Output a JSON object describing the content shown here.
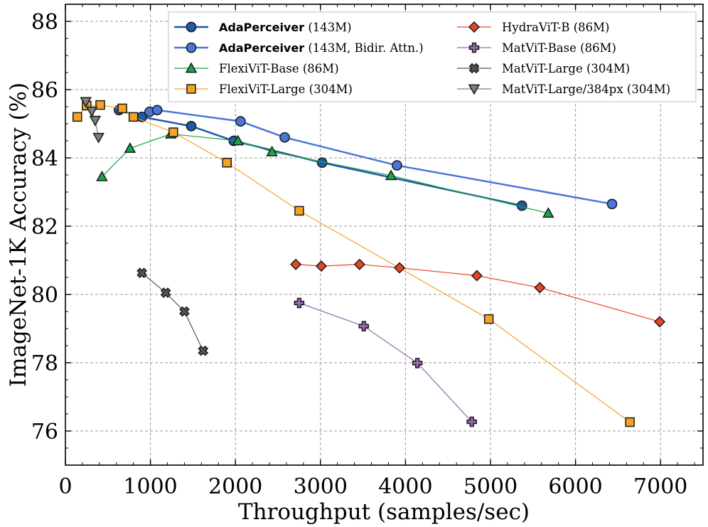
{
  "chart_data": {
    "type": "line",
    "title": "",
    "xlabel": "Throughput (samples/sec)",
    "ylabel": "ImageNet-1K Accuracy (%)",
    "xlim": [
      0,
      7500
    ],
    "ylim": [
      75,
      88.5
    ],
    "xticks": [
      0,
      1000,
      2000,
      3000,
      4000,
      5000,
      6000,
      7000
    ],
    "yticks": [
      76,
      78,
      80,
      82,
      84,
      86,
      88
    ],
    "grid": true,
    "legend_position": "top",
    "series": [
      {
        "name": "AdaPerceiver",
        "name_bold": true,
        "detail": " (143M)",
        "color": "#1f5aa6",
        "marker": "circle",
        "lw": 2.5,
        "x": [
          630,
          900,
          1480,
          1980,
          3020,
          5370
        ],
        "y": [
          85.4,
          85.2,
          84.93,
          84.5,
          83.86,
          82.6
        ]
      },
      {
        "name": "AdaPerceiver",
        "name_bold": true,
        "detail": " (143M, Bidir. Attn.)",
        "color": "#4a76d8",
        "marker": "circle",
        "lw": 2.5,
        "x": [
          990,
          1080,
          2060,
          2580,
          3900,
          6430
        ],
        "y": [
          85.35,
          85.4,
          85.07,
          84.6,
          83.78,
          82.65
        ]
      },
      {
        "name": "FlexiViT-Base (86M)",
        "color": "#1aa648",
        "marker": "triangle-up",
        "lw": 1.2,
        "x": [
          430,
          760,
          1240,
          2030,
          2430,
          3830,
          5680
        ],
        "y": [
          83.45,
          84.28,
          84.7,
          84.5,
          84.18,
          83.48,
          82.38
        ]
      },
      {
        "name": "FlexiViT-Large (304M)",
        "color": "#f4a323",
        "marker": "square",
        "lw": 1.2,
        "x": [
          140,
          250,
          410,
          670,
          800,
          1270,
          1900,
          2750,
          4980,
          6640
        ],
        "y": [
          85.2,
          85.53,
          85.55,
          85.45,
          85.2,
          84.75,
          83.86,
          82.45,
          79.28,
          76.26
        ]
      },
      {
        "name": "HydraViT-B (86M)",
        "color": "#e84622",
        "marker": "diamond",
        "lw": 1.2,
        "x": [
          2710,
          3010,
          3460,
          3930,
          4840,
          5580,
          6990
        ],
        "y": [
          80.88,
          80.83,
          80.88,
          80.78,
          80.55,
          80.2,
          79.2
        ]
      },
      {
        "name": "MatViT-Base (86M)",
        "color": "#9469ae",
        "marker": "plus",
        "lw": 1.2,
        "x": [
          2750,
          3510,
          4140,
          4780
        ],
        "y": [
          79.75,
          79.07,
          77.99,
          76.27
        ]
      },
      {
        "name": "MatViT-Large (304M)",
        "color": "#555555",
        "marker": "x",
        "lw": 1.2,
        "x": [
          900,
          1180,
          1400,
          1620
        ],
        "y": [
          80.63,
          80.05,
          79.5,
          78.35
        ]
      },
      {
        "name": "MatViT-Large/384px (304M)",
        "color": "#7f7f7f",
        "marker": "triangle-down",
        "lw": 1.2,
        "x": [
          240,
          310,
          350,
          390
        ],
        "y": [
          85.65,
          85.37,
          85.1,
          84.6
        ]
      }
    ]
  }
}
